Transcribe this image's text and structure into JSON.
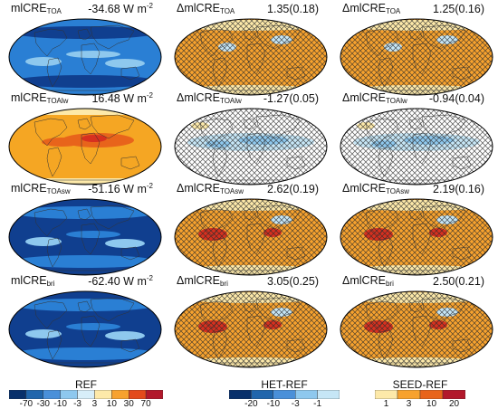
{
  "panels": [
    {
      "id": "p00",
      "col": 0,
      "row": 0,
      "prefix": "",
      "var": "mlCRE",
      "sub": "TOA",
      "value": "-34.68 W m",
      "unit_sup": "-2",
      "hatch": false
    },
    {
      "id": "p10",
      "col": 0,
      "row": 1,
      "prefix": "",
      "var": "mlCRE",
      "sub": "TOAlw",
      "value": "16.48 W m",
      "unit_sup": "-2",
      "hatch": false
    },
    {
      "id": "p20",
      "col": 0,
      "row": 2,
      "prefix": "",
      "var": "mlCRE",
      "sub": "TOAsw",
      "value": "-51.16 W m",
      "unit_sup": "-2",
      "hatch": false
    },
    {
      "id": "p30",
      "col": 0,
      "row": 3,
      "prefix": "",
      "var": "mlCRE",
      "sub": "bri",
      "value": "-62.40 W m",
      "unit_sup": "-2",
      "hatch": false
    },
    {
      "id": "p01",
      "col": 1,
      "row": 0,
      "prefix": "Δ",
      "var": "mlCRE",
      "sub": "TOA",
      "value": "1.35(0.18)",
      "unit_sup": "",
      "hatch": true
    },
    {
      "id": "p11",
      "col": 1,
      "row": 1,
      "prefix": "Δ",
      "var": "mlCRE",
      "sub": "TOAlw",
      "value": "-1.27(0.05)",
      "unit_sup": "",
      "hatch": true
    },
    {
      "id": "p21",
      "col": 1,
      "row": 2,
      "prefix": "Δ",
      "var": "mlCRE",
      "sub": "TOAsw",
      "value": "2.62(0.19)",
      "unit_sup": "",
      "hatch": true
    },
    {
      "id": "p31",
      "col": 1,
      "row": 3,
      "prefix": "Δ",
      "var": "mlCRE",
      "sub": "bri",
      "value": "3.05(0.25)",
      "unit_sup": "",
      "hatch": true
    },
    {
      "id": "p02",
      "col": 2,
      "row": 0,
      "prefix": "Δ",
      "var": "mlCRE",
      "sub": "TOA",
      "value": "1.25(0.16)",
      "unit_sup": "",
      "hatch": true
    },
    {
      "id": "p12",
      "col": 2,
      "row": 1,
      "prefix": "Δ",
      "var": "mlCRE",
      "sub": "TOAlw",
      "value": "-0.94(0.04)",
      "unit_sup": "",
      "hatch": true
    },
    {
      "id": "p22",
      "col": 2,
      "row": 2,
      "prefix": "Δ",
      "var": "mlCRE",
      "sub": "TOAsw",
      "value": "2.19(0.16)",
      "unit_sup": "",
      "hatch": true
    },
    {
      "id": "p32",
      "col": 2,
      "row": 3,
      "prefix": "Δ",
      "var": "mlCRE",
      "sub": "bri",
      "value": "2.50(0.21)",
      "unit_sup": "",
      "hatch": true
    }
  ],
  "colorbars": [
    {
      "id": "cb-ref",
      "title": "REF",
      "colors": [
        "#08306b",
        "#2166ac",
        "#4a90d9",
        "#8ec8ee",
        "#d7eef9",
        "#fde9a9",
        "#f7a22e",
        "#e34a1b",
        "#b2182b"
      ],
      "ticks": [
        "-70",
        "-30",
        "-10",
        "-3",
        "3",
        "10",
        "30",
        "70"
      ]
    },
    {
      "id": "cb-het",
      "title": "HET-REF",
      "colors": [
        "#08306b",
        "#2166ac",
        "#4a90d9",
        "#8ec8ee",
        "#c6e6f6"
      ],
      "ticks": [
        "-20",
        "-10",
        "-3",
        "-1"
      ]
    },
    {
      "id": "cb-seed",
      "title": "SEED-REF",
      "colors": [
        "#fde9a9",
        "#f7a22e",
        "#e8641b",
        "#b2182b"
      ],
      "ticks": [
        "1",
        "3",
        "10",
        "20"
      ]
    }
  ],
  "colors": {
    "ref_lw_base": "#f5a623",
    "ref_lw_warm": "#e8641b",
    "ref_lw_hot": "#d7301f",
    "ref_sw_base": "#103f8f",
    "ref_sw_mid": "#2a7fd4",
    "ref_sw_light": "#8ec8ee",
    "diff_pos_base": "#f7a22e",
    "diff_pos_light": "#fde9a9",
    "diff_pos_hot": "#d7301f",
    "diff_neg_light": "#c6e6f6",
    "diff_neg_mid": "#8ec8ee",
    "diff_neutral": "#ffffff",
    "hatch_color": "#2b2b2b"
  }
}
